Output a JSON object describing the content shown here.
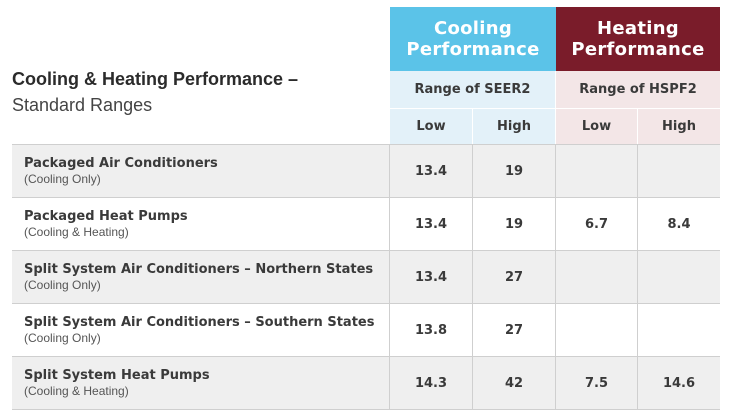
{
  "title": {
    "main": "Cooling & Heating Performance –",
    "sub": "Standard Ranges"
  },
  "headers": {
    "cooling": {
      "line1": "Cooling",
      "line2": "Performance",
      "color": "#5bc3e8"
    },
    "heating": {
      "line1": "Heating",
      "line2": "Performance",
      "color": "#7a1c2a"
    }
  },
  "subheaders": {
    "cooling_range": "Range of SEER2",
    "heating_range": "Range of HSPF2",
    "low": "Low",
    "high": "High"
  },
  "rows": [
    {
      "name": "Packaged Air Conditioners",
      "desc": "(Cooling Only)",
      "seer2_low": "13.4",
      "seer2_high": "19",
      "hspf2_low": "",
      "hspf2_high": ""
    },
    {
      "name": "Packaged Heat Pumps",
      "desc": "(Cooling & Heating)",
      "seer2_low": "13.4",
      "seer2_high": "19",
      "hspf2_low": "6.7",
      "hspf2_high": "8.4"
    },
    {
      "name": "Split System Air Conditioners – Northern States",
      "desc": "(Cooling Only)",
      "seer2_low": "13.4",
      "seer2_high": "27",
      "hspf2_low": "",
      "hspf2_high": ""
    },
    {
      "name": "Split System Air Conditioners – Southern States",
      "desc": "(Cooling Only)",
      "seer2_low": "13.8",
      "seer2_high": "27",
      "hspf2_low": "",
      "hspf2_high": ""
    },
    {
      "name": "Split System Heat Pumps",
      "desc": "(Cooling & Heating)",
      "seer2_low": "14.3",
      "seer2_high": "42",
      "hspf2_low": "7.5",
      "hspf2_high": "14.6"
    }
  ]
}
